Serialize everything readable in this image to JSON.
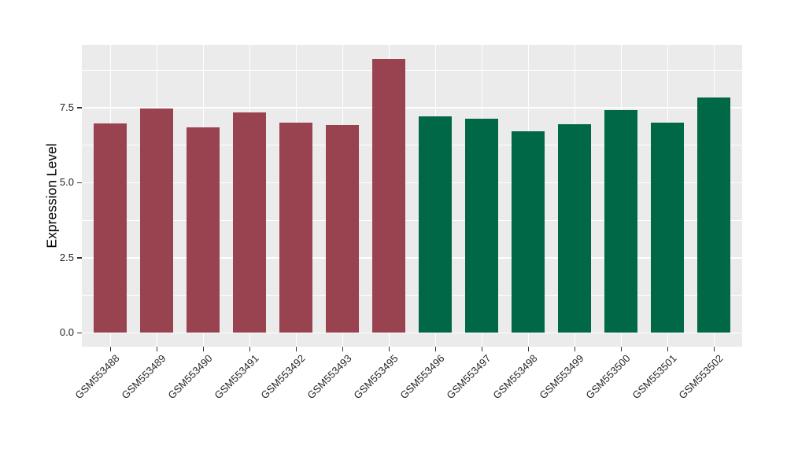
{
  "figure": {
    "background": "#ffffff",
    "panel_bg": "#ebebeb",
    "grid_color": "#ffffff",
    "tick_mark_color": "#333333",
    "tick_label_color": "#262626",
    "axis_title_color": "#000000"
  },
  "chart_data": {
    "type": "bar",
    "title": "",
    "xlabel": "",
    "ylabel": "Expression Level",
    "legend": "none",
    "grid": "on",
    "categories": [
      "GSM553488",
      "GSM553489",
      "GSM553490",
      "GSM553491",
      "GSM553492",
      "GSM553493",
      "GSM553495",
      "GSM553496",
      "GSM553497",
      "GSM553498",
      "GSM553499",
      "GSM553500",
      "GSM553501",
      "GSM553502"
    ],
    "values": [
      6.96,
      7.47,
      6.85,
      7.34,
      7.0,
      6.93,
      9.13,
      7.2,
      7.13,
      6.71,
      6.95,
      7.41,
      6.99,
      7.84
    ],
    "bar_colors": [
      "#9A4350",
      "#9A4350",
      "#9A4350",
      "#9A4350",
      "#9A4350",
      "#9A4350",
      "#9A4350",
      "#006846",
      "#006846",
      "#006846",
      "#006846",
      "#006846",
      "#006846",
      "#006846"
    ],
    "group_colors": {
      "left_group": "#9A4350",
      "right_group": "#006846"
    },
    "ylim": [
      -0.46,
      9.59
    ],
    "ytick_values": [
      0.0,
      2.5,
      5.0,
      7.5
    ],
    "ytick_labels": [
      "0.0",
      "2.5",
      "5.0",
      "7.5"
    ],
    "ytick_minor_values": [
      1.25,
      3.75,
      6.25,
      8.75
    ],
    "x_label_rotation_deg": 45
  }
}
